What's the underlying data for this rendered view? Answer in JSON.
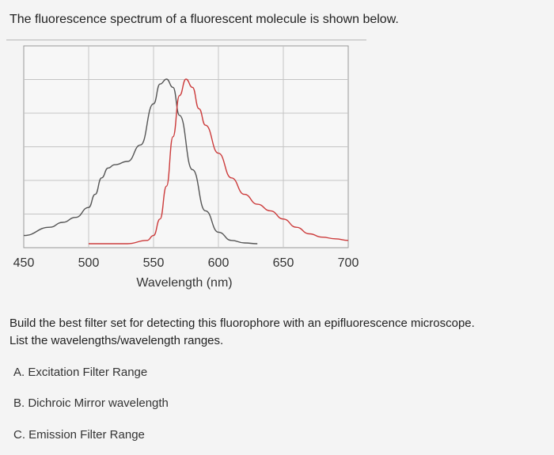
{
  "question": "The fluorescence spectrum of a fluorescent molecule is shown below.",
  "prompt": {
    "line1": "Build the best filter set for detecting this fluorophore with an epifluorescence microscope.",
    "line2": "List the wavelengths/wavelength ranges."
  },
  "options": [
    "A. Excitation Filter Range",
    "B. Dichroic Mirror wavelength",
    "C. Emission Filter Range"
  ],
  "chart_data": {
    "type": "line",
    "title": "",
    "xlabel": "Wavelength (nm)",
    "ylabel": "",
    "xlim": [
      450,
      700
    ],
    "ylim": [
      0,
      1
    ],
    "x_ticks": [
      450,
      500,
      550,
      600,
      650,
      700
    ],
    "grid": true,
    "legend": "none",
    "series": [
      {
        "color": "#555555",
        "x": [
          450,
          470,
          480,
          490,
          500,
          505,
          510,
          515,
          520,
          530,
          540,
          550,
          555,
          560,
          565,
          570,
          580,
          590,
          600,
          610,
          620,
          630
        ],
        "y": [
          0.05,
          0.1,
          0.13,
          0.16,
          0.22,
          0.3,
          0.4,
          0.46,
          0.48,
          0.5,
          0.6,
          0.85,
          0.97,
          1.0,
          0.95,
          0.78,
          0.45,
          0.2,
          0.07,
          0.02,
          0.005,
          0.0
        ]
      },
      {
        "color": "#cc3b3b",
        "x": [
          500,
          530,
          545,
          550,
          555,
          560,
          565,
          570,
          575,
          580,
          585,
          590,
          600,
          610,
          620,
          630,
          640,
          650,
          660,
          670,
          680,
          690,
          700
        ],
        "y": [
          0.0,
          0.0,
          0.02,
          0.05,
          0.15,
          0.35,
          0.65,
          0.9,
          1.0,
          0.95,
          0.82,
          0.72,
          0.55,
          0.4,
          0.3,
          0.24,
          0.2,
          0.15,
          0.1,
          0.06,
          0.04,
          0.03,
          0.02
        ]
      }
    ]
  }
}
